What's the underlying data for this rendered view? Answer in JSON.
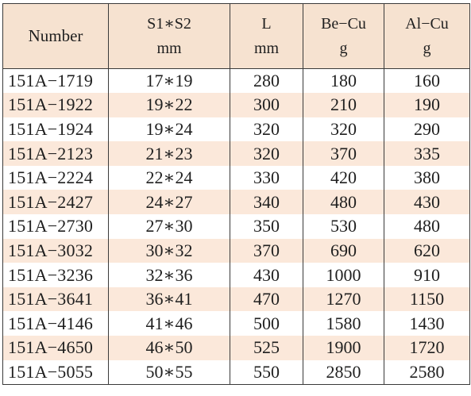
{
  "headers": [
    {
      "label": "Number",
      "unit": ""
    },
    {
      "label": "S1∗S2",
      "unit": "mm"
    },
    {
      "label": "L",
      "unit": "mm"
    },
    {
      "label": "Be−Cu",
      "unit": "g"
    },
    {
      "label": "Al−Cu",
      "unit": "g"
    }
  ],
  "rows": [
    [
      "151A−1719",
      "17∗19",
      "280",
      "180",
      "160"
    ],
    [
      "151A−1922",
      "19∗22",
      "300",
      "210",
      "190"
    ],
    [
      "151A−1924",
      "19∗24",
      "320",
      "320",
      "290"
    ],
    [
      "151A−2123",
      "21∗23",
      "320",
      "370",
      "335"
    ],
    [
      "151A−2224",
      "22∗24",
      "330",
      "420",
      "380"
    ],
    [
      "151A−2427",
      "24∗27",
      "340",
      "480",
      "430"
    ],
    [
      "151A−2730",
      "27∗30",
      "350",
      "530",
      "480"
    ],
    [
      "151A−3032",
      "30∗32",
      "370",
      "690",
      "620"
    ],
    [
      "151A−3236",
      "32∗36",
      "430",
      "1000",
      "910"
    ],
    [
      "151A−3641",
      "36∗41",
      "470",
      "1270",
      "1150"
    ],
    [
      "151A−4146",
      "41∗46",
      "500",
      "1580",
      "1430"
    ],
    [
      "151A−4650",
      "46∗50",
      "525",
      "1900",
      "1720"
    ],
    [
      "151A−5055",
      "50∗55",
      "550",
      "2850",
      "2580"
    ]
  ],
  "colors": {
    "header_bg": "#f6e2d0",
    "alt_row_bg": "#fbe8da",
    "border": "#3a3a3a",
    "text": "#1f1f1f"
  }
}
